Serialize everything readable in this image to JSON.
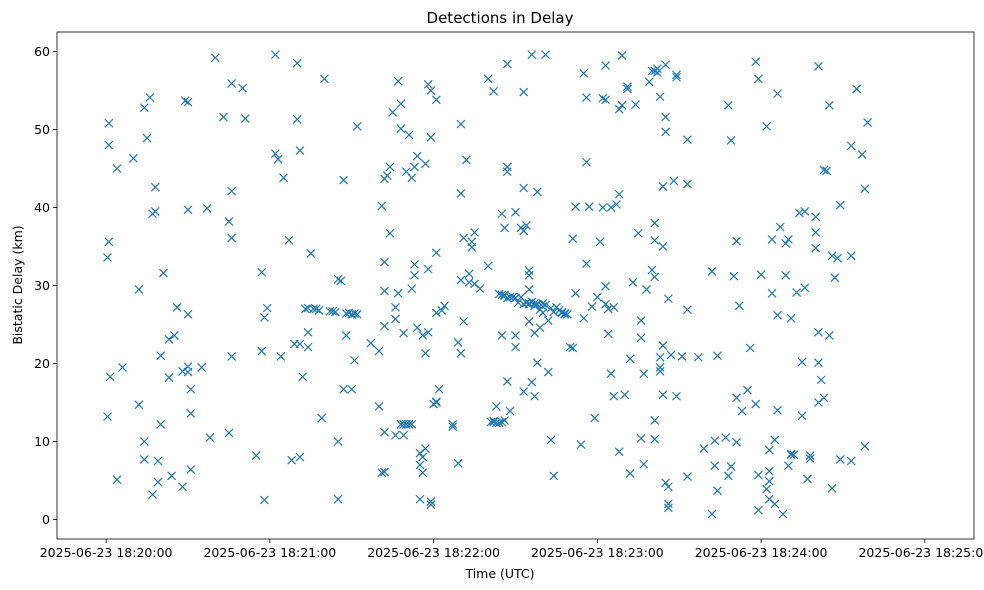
{
  "chart_data": {
    "type": "scatter",
    "title": "Detections in Delay",
    "xlabel": "Time (UTC)",
    "ylabel": "Bistatic Delay (km)",
    "marker": "x",
    "color": "#1f77b4",
    "x_unit": "seconds since 2025-06-23 18:20:00",
    "xlim": [
      -18,
      318
    ],
    "ylim": [
      -2.5,
      62.5
    ],
    "xticks": [
      {
        "value": 0,
        "label": "2025-06-23 18:20:00"
      },
      {
        "value": 60,
        "label": "2025-06-23 18:21:00"
      },
      {
        "value": 120,
        "label": "2025-06-23 18:22:00"
      },
      {
        "value": 180,
        "label": "2025-06-23 18:23:00"
      },
      {
        "value": 240,
        "label": "2025-06-23 18:24:00"
      },
      {
        "value": 300,
        "label": "2025-06-23 18:25:00"
      }
    ],
    "yticks": [
      {
        "value": 0,
        "label": "0"
      },
      {
        "value": 10,
        "label": "10"
      },
      {
        "value": 20,
        "label": "20"
      },
      {
        "value": 30,
        "label": "30"
      },
      {
        "value": 40,
        "label": "40"
      },
      {
        "value": 50,
        "label": "50"
      },
      {
        "value": 60,
        "label": "60"
      }
    ],
    "points": [
      [
        1,
        50.8
      ],
      [
        1,
        48
      ],
      [
        1,
        35.6
      ],
      [
        0.5,
        33.6
      ],
      [
        1.5,
        18.3
      ],
      [
        0.5,
        13.2
      ],
      [
        4,
        45
      ],
      [
        4,
        5.1
      ],
      [
        6,
        19.5
      ],
      [
        10,
        46.3
      ],
      [
        12,
        29.5
      ],
      [
        12,
        14.7
      ],
      [
        14,
        52.8
      ],
      [
        16,
        54.1
      ],
      [
        15,
        48.9
      ],
      [
        14,
        10
      ],
      [
        14,
        7.7
      ],
      [
        17,
        39.2
      ],
      [
        18,
        39.5
      ],
      [
        18,
        42.6
      ],
      [
        17,
        3.2
      ],
      [
        19,
        7.5
      ],
      [
        19,
        4.8
      ],
      [
        21,
        31.6
      ],
      [
        20,
        21
      ],
      [
        20,
        12.2
      ],
      [
        23,
        23.1
      ],
      [
        23,
        18.2
      ],
      [
        24,
        5.6
      ],
      [
        25,
        23.6
      ],
      [
        26,
        27.2
      ],
      [
        28,
        19
      ],
      [
        28,
        4.2
      ],
      [
        29,
        53.7
      ],
      [
        30,
        53.5
      ],
      [
        30,
        39.7
      ],
      [
        30,
        26.3
      ],
      [
        30,
        19.6
      ],
      [
        31,
        13.6
      ],
      [
        31,
        16.7
      ],
      [
        30,
        18.9
      ],
      [
        31,
        6.4
      ],
      [
        35,
        19.5
      ],
      [
        37,
        39.9
      ],
      [
        38,
        10.5
      ],
      [
        40,
        59.2
      ],
      [
        43,
        51.6
      ],
      [
        45,
        38.2
      ],
      [
        45,
        11.1
      ],
      [
        46,
        55.9
      ],
      [
        46,
        42.1
      ],
      [
        46,
        36.1
      ],
      [
        46,
        20.9
      ],
      [
        50,
        55.3
      ],
      [
        51,
        51.4
      ],
      [
        55,
        8.2
      ],
      [
        57,
        21.6
      ],
      [
        57,
        31.7
      ],
      [
        59,
        27.1
      ],
      [
        58,
        25.9
      ],
      [
        58,
        2.5
      ],
      [
        62,
        59.6
      ],
      [
        62,
        46.9
      ],
      [
        63,
        46.2
      ],
      [
        64,
        20.9
      ],
      [
        65,
        43.8
      ],
      [
        67,
        35.8
      ],
      [
        68,
        7.6
      ],
      [
        69,
        22.5
      ],
      [
        70,
        58.5
      ],
      [
        70,
        51.3
      ],
      [
        71,
        47.3
      ],
      [
        71,
        22.5
      ],
      [
        71,
        8
      ],
      [
        72,
        18.3
      ],
      [
        73,
        27
      ],
      [
        74,
        24
      ],
      [
        74,
        22.1
      ],
      [
        75,
        34.1
      ],
      [
        74,
        27.1
      ],
      [
        76,
        27
      ],
      [
        77,
        27
      ],
      [
        78,
        26.8
      ],
      [
        79,
        13
      ],
      [
        80,
        56.5
      ],
      [
        82,
        26.7
      ],
      [
        83,
        26.7
      ],
      [
        84,
        26.6
      ],
      [
        85,
        30.8
      ],
      [
        85,
        10
      ],
      [
        85,
        2.6
      ],
      [
        86,
        30.6
      ],
      [
        87,
        43.5
      ],
      [
        87,
        16.7
      ],
      [
        88,
        26.4
      ],
      [
        88,
        23.6
      ],
      [
        89,
        26.5
      ],
      [
        90,
        26.3
      ],
      [
        90,
        16.7
      ],
      [
        91,
        26.4
      ],
      [
        91,
        20.4
      ],
      [
        92,
        26.3
      ],
      [
        92,
        50.4
      ],
      [
        97,
        22.6
      ],
      [
        100,
        21.6
      ],
      [
        100,
        14.5
      ],
      [
        101,
        40.2
      ],
      [
        101,
        6
      ],
      [
        102,
        43.7
      ],
      [
        102,
        33
      ],
      [
        102,
        29.3
      ],
      [
        102,
        24.8
      ],
      [
        102,
        11.2
      ],
      [
        102,
        6.1
      ],
      [
        103,
        44.1
      ],
      [
        104,
        36.7
      ],
      [
        104,
        45.2
      ],
      [
        105,
        52.2
      ],
      [
        106,
        10.8
      ],
      [
        106,
        27.2
      ],
      [
        106,
        25.7
      ],
      [
        107,
        56.2
      ],
      [
        107,
        29
      ],
      [
        108,
        53.3
      ],
      [
        108,
        50.1
      ],
      [
        108,
        12.2
      ],
      [
        109,
        23.9
      ],
      [
        109,
        10.8
      ],
      [
        109,
        12.2
      ],
      [
        110,
        44.6
      ],
      [
        110,
        12.2
      ],
      [
        111,
        49.3
      ],
      [
        111,
        12.2
      ],
      [
        112,
        43.8
      ],
      [
        112,
        29.6
      ],
      [
        112,
        12.2
      ],
      [
        113,
        32.7
      ],
      [
        113,
        31.3
      ],
      [
        113,
        45.2
      ],
      [
        114,
        46.6
      ],
      [
        114,
        24.6
      ],
      [
        115,
        8.5
      ],
      [
        115,
        7
      ],
      [
        115,
        2.6
      ],
      [
        116,
        6
      ],
      [
        116,
        8
      ],
      [
        116,
        23.6
      ],
      [
        117,
        45.6
      ],
      [
        117,
        9.1
      ],
      [
        118,
        24
      ],
      [
        118,
        32.1
      ],
      [
        117,
        21.3
      ],
      [
        118,
        55.8
      ],
      [
        119,
        55
      ],
      [
        119,
        49
      ],
      [
        119,
        2.3
      ],
      [
        119,
        1.9
      ],
      [
        120,
        14.8
      ],
      [
        121,
        53.8
      ],
      [
        121,
        34.2
      ],
      [
        121,
        26.5
      ],
      [
        121,
        15
      ],
      [
        122,
        16.7
      ],
      [
        121,
        15.1
      ],
      [
        123,
        26.8
      ],
      [
        124,
        27.4
      ],
      [
        127,
        12.2
      ],
      [
        127,
        11.9
      ],
      [
        129,
        7.2
      ],
      [
        129,
        22.7
      ],
      [
        130,
        50.7
      ],
      [
        130,
        41.8
      ],
      [
        130,
        30.7
      ],
      [
        130,
        21.3
      ],
      [
        131,
        25.4
      ],
      [
        131,
        36.1
      ],
      [
        132,
        46.1
      ],
      [
        133,
        30.4
      ],
      [
        133,
        31.5
      ],
      [
        134,
        35.6
      ],
      [
        134,
        34.9
      ],
      [
        135,
        36.8
      ],
      [
        135,
        30.2
      ],
      [
        137,
        29.6
      ],
      [
        140,
        56.5
      ],
      [
        140,
        32.5
      ],
      [
        141,
        12.5
      ],
      [
        142,
        12.6
      ],
      [
        142,
        54.9
      ],
      [
        142,
        12.5
      ],
      [
        143,
        14.5
      ],
      [
        143,
        12.4
      ],
      [
        144,
        12.4
      ],
      [
        144,
        28.9
      ],
      [
        145,
        12.5
      ],
      [
        145,
        28.8
      ],
      [
        145,
        39.2
      ],
      [
        145,
        23.6
      ],
      [
        146,
        12.7
      ],
      [
        146,
        28.8
      ],
      [
        146,
        37.4
      ],
      [
        146,
        28.7
      ],
      [
        147,
        58.4
      ],
      [
        147,
        45.2
      ],
      [
        147,
        44.6
      ],
      [
        147,
        28.4
      ],
      [
        147,
        17.7
      ],
      [
        148,
        13.9
      ],
      [
        148,
        28.5
      ],
      [
        149,
        28.5
      ],
      [
        150,
        28.4
      ],
      [
        150,
        39.4
      ],
      [
        150,
        23.6
      ],
      [
        150,
        22.1
      ],
      [
        151,
        27.8
      ],
      [
        152,
        28.5
      ],
      [
        152,
        37.4
      ],
      [
        153,
        37
      ],
      [
        153,
        54.8
      ],
      [
        153,
        42.5
      ],
      [
        153,
        27.6
      ],
      [
        153,
        16.4
      ],
      [
        154,
        37.7
      ],
      [
        154,
        27.8
      ],
      [
        155,
        31.9
      ],
      [
        155,
        27.7
      ],
      [
        155,
        27.6
      ],
      [
        155,
        25.4
      ],
      [
        155,
        29.5
      ],
      [
        155,
        31.3
      ],
      [
        156,
        27.9
      ],
      [
        156,
        59.6
      ],
      [
        156,
        17.6
      ],
      [
        157,
        27.4
      ],
      [
        157,
        27.7
      ],
      [
        157,
        15.8
      ],
      [
        157,
        23.9
      ],
      [
        158,
        42
      ],
      [
        158,
        27.6
      ],
      [
        158,
        20.1
      ],
      [
        159,
        26.9
      ],
      [
        159,
        24.6
      ],
      [
        160,
        27.7
      ],
      [
        160,
        27.3
      ],
      [
        160,
        26.5
      ],
      [
        161,
        27.5
      ],
      [
        161,
        59.6
      ],
      [
        162,
        18.9
      ],
      [
        162,
        25.5
      ],
      [
        163,
        27.1
      ],
      [
        163,
        10.2
      ],
      [
        164,
        26.6
      ],
      [
        164,
        5.6
      ],
      [
        165,
        27.2
      ],
      [
        166,
        26.8
      ],
      [
        167,
        26.6
      ],
      [
        167,
        26.5
      ],
      [
        168,
        26.4
      ],
      [
        168,
        26.3
      ],
      [
        169,
        26.3
      ],
      [
        170,
        22.1
      ],
      [
        171,
        22
      ],
      [
        171,
        36
      ],
      [
        172,
        29
      ],
      [
        172,
        40.1
      ],
      [
        174,
        9.6
      ],
      [
        175,
        57.2
      ],
      [
        175,
        25.8
      ],
      [
        176,
        54.1
      ],
      [
        176,
        32.8
      ],
      [
        176,
        45.8
      ],
      [
        177,
        40.1
      ],
      [
        178,
        27.3
      ],
      [
        179,
        13
      ],
      [
        180,
        28.5
      ],
      [
        181,
        35.6
      ],
      [
        182,
        40
      ],
      [
        182,
        54
      ],
      [
        183,
        53.8
      ],
      [
        183,
        58.2
      ],
      [
        183,
        27.6
      ],
      [
        183,
        29.9
      ],
      [
        184,
        27
      ],
      [
        184,
        23.8
      ],
      [
        185,
        40
      ],
      [
        185,
        18.7
      ],
      [
        186,
        15.8
      ],
      [
        186,
        27.2
      ],
      [
        187,
        40.4
      ],
      [
        188,
        52.6
      ],
      [
        188,
        41.7
      ],
      [
        188,
        8.7
      ],
      [
        189,
        53.1
      ],
      [
        189,
        59.5
      ],
      [
        190,
        16
      ],
      [
        191,
        55.5
      ],
      [
        191,
        55.2
      ],
      [
        192,
        20.6
      ],
      [
        192,
        5.9
      ],
      [
        193,
        30.4
      ],
      [
        194,
        53.2
      ],
      [
        195,
        36.7
      ],
      [
        196,
        10.4
      ],
      [
        196,
        25.5
      ],
      [
        196,
        23.3
      ],
      [
        197,
        18.7
      ],
      [
        197,
        7.1
      ],
      [
        198,
        29.5
      ],
      [
        199,
        56.1
      ],
      [
        200,
        57.5
      ],
      [
        200,
        32
      ],
      [
        201,
        57.5
      ],
      [
        201,
        38
      ],
      [
        201,
        31.1
      ],
      [
        201,
        35.8
      ],
      [
        201,
        12.7
      ],
      [
        201,
        10.3
      ],
      [
        202,
        57.8
      ],
      [
        202,
        57.3
      ],
      [
        203,
        20.8
      ],
      [
        203,
        19
      ],
      [
        203,
        54.2
      ],
      [
        203,
        19.5
      ],
      [
        204,
        35
      ],
      [
        204,
        42.7
      ],
      [
        204,
        22.3
      ],
      [
        204,
        16
      ],
      [
        205,
        58.3
      ],
      [
        205,
        49.7
      ],
      [
        205,
        51.6
      ],
      [
        205,
        4.7
      ],
      [
        206,
        28.3
      ],
      [
        206,
        4.2
      ],
      [
        206,
        2
      ],
      [
        206,
        1.5
      ],
      [
        207,
        21.1
      ],
      [
        208,
        43.4
      ],
      [
        209,
        57
      ],
      [
        209,
        56.7
      ],
      [
        209,
        15.8
      ],
      [
        211,
        20.9
      ],
      [
        213,
        48.7
      ],
      [
        213,
        43
      ],
      [
        213,
        26.9
      ],
      [
        213,
        5.5
      ],
      [
        217,
        20.8
      ],
      [
        219,
        9.1
      ],
      [
        222,
        31.8
      ],
      [
        222,
        0.7
      ],
      [
        223,
        10.1
      ],
      [
        223,
        6.9
      ],
      [
        224,
        21
      ],
      [
        224,
        3.7
      ],
      [
        227,
        10.5
      ],
      [
        228,
        53.1
      ],
      [
        228,
        5.6
      ],
      [
        229,
        6.8
      ],
      [
        229,
        48.6
      ],
      [
        230,
        31.2
      ],
      [
        231,
        35.7
      ],
      [
        231,
        9.9
      ],
      [
        231,
        15.6
      ],
      [
        232,
        27.4
      ],
      [
        233,
        13.9
      ],
      [
        235,
        16.6
      ],
      [
        236,
        22
      ],
      [
        238,
        14.8
      ],
      [
        238,
        58.7
      ],
      [
        239,
        56.5
      ],
      [
        239,
        5.7
      ],
      [
        239,
        1.2
      ],
      [
        240,
        31.4
      ],
      [
        242,
        50.4
      ],
      [
        242,
        3.9
      ],
      [
        243,
        8.9
      ],
      [
        243,
        6.2
      ],
      [
        243,
        4.9
      ],
      [
        243,
        2.6
      ],
      [
        244,
        35.9
      ],
      [
        244,
        29
      ],
      [
        245,
        10.2
      ],
      [
        245,
        2
      ],
      [
        246,
        54.6
      ],
      [
        246,
        26.2
      ],
      [
        246,
        14
      ],
      [
        247,
        37.5
      ],
      [
        248,
        0.7
      ],
      [
        249,
        35.4
      ],
      [
        249,
        31.3
      ],
      [
        250,
        6.9
      ],
      [
        250,
        35.9
      ],
      [
        251,
        25.8
      ],
      [
        251,
        8.4
      ],
      [
        251,
        8.3
      ],
      [
        252,
        8.3
      ],
      [
        253,
        29.1
      ],
      [
        254,
        39.3
      ],
      [
        255,
        13.3
      ],
      [
        255,
        20.2
      ],
      [
        256,
        39.5
      ],
      [
        256,
        29.7
      ],
      [
        257,
        5.2
      ],
      [
        258,
        7.8
      ],
      [
        258,
        8.2
      ],
      [
        260,
        38.8
      ],
      [
        260,
        36.8
      ],
      [
        260,
        34.8
      ],
      [
        261,
        58.1
      ],
      [
        261,
        24
      ],
      [
        261,
        15
      ],
      [
        261,
        20.1
      ],
      [
        262,
        17.9
      ],
      [
        263,
        44.8
      ],
      [
        263,
        15.6
      ],
      [
        264,
        44.7
      ],
      [
        265,
        23.6
      ],
      [
        265,
        53.1
      ],
      [
        266,
        4
      ],
      [
        266,
        33.8
      ],
      [
        267,
        31
      ],
      [
        268,
        33.5
      ],
      [
        269,
        7.7
      ],
      [
        269,
        40.3
      ],
      [
        273,
        47.9
      ],
      [
        273,
        33.8
      ],
      [
        273,
        7.5
      ],
      [
        275,
        55.2
      ],
      [
        277,
        46.8
      ],
      [
        278,
        42.4
      ],
      [
        278,
        9.4
      ],
      [
        279,
        50.9
      ]
    ]
  }
}
